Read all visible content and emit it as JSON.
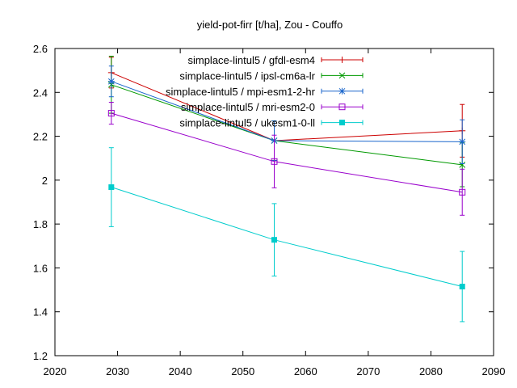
{
  "chart_data": {
    "type": "line",
    "title": "yield-pot-firr [t/ha], Zou - Couffo",
    "xlabel": "",
    "ylabel": "",
    "xlim": [
      2020,
      2090
    ],
    "ylim": [
      1.2,
      2.6
    ],
    "xticks": [
      2020,
      2030,
      2040,
      2050,
      2060,
      2070,
      2080,
      2090
    ],
    "yticks": [
      1.2,
      1.4,
      1.6,
      1.8,
      2,
      2.2,
      2.4,
      2.6
    ],
    "xtick_labels": [
      "2020",
      "2030",
      "2040",
      "2050",
      "2060",
      "2070",
      "2080",
      "2090"
    ],
    "ytick_labels": [
      "1.2",
      "1.4",
      "1.6",
      "1.8",
      "2",
      "2.2",
      "2.4",
      "2.6"
    ],
    "grid": false,
    "legend_position": "top-right",
    "series": [
      {
        "name": "simplace-lintul5 / gfdl-esm4",
        "color": "#cc0000",
        "marker": "plus",
        "x": [
          2029,
          2055,
          2085
        ],
        "y": [
          2.49,
          2.18,
          2.225
        ],
        "err": [
          0.07,
          0.09,
          0.12
        ]
      },
      {
        "name": "simplace-lintul5 / ipsl-cm6a-lr",
        "color": "#009900",
        "marker": "cross",
        "x": [
          2029,
          2055,
          2085
        ],
        "y": [
          2.435,
          2.18,
          2.07
        ],
        "err": [
          0.13,
          0.09,
          0.1
        ]
      },
      {
        "name": "simplace-lintul5 / mpi-esm1-2-hr",
        "color": "#1a66cc",
        "marker": "star",
        "x": [
          2029,
          2055,
          2085
        ],
        "y": [
          2.45,
          2.18,
          2.175
        ],
        "err": [
          0.07,
          0.09,
          0.1
        ]
      },
      {
        "name": "simplace-lintul5 / mri-esm2-0",
        "color": "#9900cc",
        "marker": "square-open",
        "x": [
          2029,
          2055,
          2085
        ],
        "y": [
          2.305,
          2.085,
          1.945
        ],
        "err": [
          0.05,
          0.12,
          0.105
        ]
      },
      {
        "name": "simplace-lintul5 / ukesm1-0-ll",
        "color": "#00cccc",
        "marker": "square-filled",
        "x": [
          2029,
          2055,
          2085
        ],
        "y": [
          1.968,
          1.728,
          1.515
        ],
        "err": [
          0.18,
          0.165,
          0.16
        ]
      }
    ]
  }
}
